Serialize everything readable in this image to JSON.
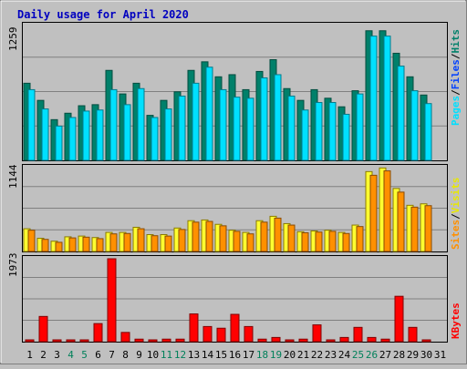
{
  "title": "Daily usage for April 2020",
  "colors": {
    "background": "#c0c0c0",
    "title": "#0000c0",
    "hits": "#00806a",
    "files": "#00e0ff",
    "visits": "#ffff30",
    "sites": "#ff9000",
    "kbytes": "#ff0000",
    "weekend": "#00805a",
    "text": "#000000"
  },
  "chart_data": [
    {
      "type": "bar",
      "panel": "hits-files",
      "ymax_label": "1259",
      "ylim": [
        0,
        1259
      ],
      "grid": true,
      "legend_placement": "right",
      "legend": [
        "Pages",
        "Files",
        "Hits"
      ],
      "categories": [
        "1",
        "2",
        "3",
        "4",
        "5",
        "6",
        "7",
        "8",
        "9",
        "10",
        "11",
        "12",
        "13",
        "14",
        "15",
        "16",
        "17",
        "18",
        "19",
        "20",
        "21",
        "22",
        "23",
        "24",
        "25",
        "26",
        "27",
        "28",
        "29",
        "30",
        "31"
      ],
      "series": [
        {
          "name": "Hits",
          "values": [
            720,
            560,
            380,
            440,
            510,
            520,
            840,
            620,
            720,
            420,
            560,
            640,
            840,
            920,
            780,
            800,
            660,
            830,
            940,
            670,
            560,
            660,
            580,
            500,
            650,
            1210,
            1210,
            1000,
            780,
            610,
            0
          ]
        },
        {
          "name": "Files",
          "values": [
            660,
            480,
            320,
            400,
            460,
            470,
            660,
            520,
            670,
            400,
            480,
            600,
            720,
            870,
            660,
            590,
            580,
            770,
            800,
            600,
            470,
            540,
            540,
            430,
            620,
            1160,
            1160,
            880,
            650,
            530,
            0
          ]
        },
        {
          "name": "Pages",
          "values": [
            0,
            0,
            0,
            0,
            0,
            0,
            0,
            0,
            0,
            0,
            0,
            0,
            0,
            0,
            0,
            0,
            0,
            0,
            0,
            0,
            0,
            0,
            0,
            0,
            0,
            0,
            0,
            0,
            0,
            0,
            0
          ]
        }
      ]
    },
    {
      "type": "bar",
      "panel": "visits-sites",
      "ymax_label": "1144",
      "ylim": [
        0,
        1144
      ],
      "grid": true,
      "legend_placement": "right",
      "legend": [
        "Sites",
        "Visits"
      ],
      "categories": [
        "1",
        "2",
        "3",
        "4",
        "5",
        "6",
        "7",
        "8",
        "9",
        "10",
        "11",
        "12",
        "13",
        "14",
        "15",
        "16",
        "17",
        "18",
        "19",
        "20",
        "21",
        "22",
        "23",
        "24",
        "25",
        "26",
        "27",
        "28",
        "29",
        "30",
        "31"
      ],
      "series": [
        {
          "name": "Visits",
          "values": [
            310,
            180,
            140,
            200,
            210,
            190,
            260,
            260,
            330,
            230,
            230,
            320,
            420,
            430,
            370,
            290,
            260,
            420,
            480,
            380,
            270,
            280,
            290,
            260,
            360,
            1090,
            1140,
            860,
            630,
            650,
            0
          ]
        },
        {
          "name": "Sites",
          "values": [
            290,
            165,
            125,
            185,
            195,
            175,
            240,
            245,
            310,
            215,
            210,
            300,
            400,
            410,
            350,
            275,
            240,
            400,
            455,
            360,
            255,
            265,
            275,
            245,
            340,
            1040,
            1100,
            810,
            605,
            625,
            0
          ]
        }
      ]
    },
    {
      "type": "bar",
      "panel": "kbytes",
      "ymax_label": "1973",
      "ylim": [
        0,
        1973
      ],
      "grid": true,
      "legend_placement": "right",
      "legend": [
        "KBytes"
      ],
      "categories": [
        "1",
        "2",
        "3",
        "4",
        "5",
        "6",
        "7",
        "8",
        "9",
        "10",
        "11",
        "12",
        "13",
        "14",
        "15",
        "16",
        "17",
        "18",
        "19",
        "20",
        "21",
        "22",
        "23",
        "24",
        "25",
        "26",
        "27",
        "28",
        "29",
        "30",
        "31"
      ],
      "series": [
        {
          "name": "KBytes",
          "values": [
            20,
            600,
            40,
            20,
            20,
            430,
            1973,
            220,
            60,
            30,
            60,
            60,
            660,
            360,
            320,
            650,
            360,
            60,
            100,
            20,
            60,
            400,
            30,
            100,
            340,
            100,
            60,
            1080,
            340,
            20,
            0
          ]
        }
      ]
    }
  ],
  "x_labels": [
    {
      "label": "1",
      "weekend": false
    },
    {
      "label": "2",
      "weekend": false
    },
    {
      "label": "3",
      "weekend": false
    },
    {
      "label": "4",
      "weekend": true
    },
    {
      "label": "5",
      "weekend": true
    },
    {
      "label": "6",
      "weekend": false
    },
    {
      "label": "7",
      "weekend": false
    },
    {
      "label": "8",
      "weekend": false
    },
    {
      "label": "9",
      "weekend": false
    },
    {
      "label": "10",
      "weekend": false
    },
    {
      "label": "11",
      "weekend": true
    },
    {
      "label": "12",
      "weekend": true
    },
    {
      "label": "13",
      "weekend": false
    },
    {
      "label": "14",
      "weekend": false
    },
    {
      "label": "15",
      "weekend": false
    },
    {
      "label": "16",
      "weekend": false
    },
    {
      "label": "17",
      "weekend": false
    },
    {
      "label": "18",
      "weekend": true
    },
    {
      "label": "19",
      "weekend": true
    },
    {
      "label": "20",
      "weekend": false
    },
    {
      "label": "21",
      "weekend": false
    },
    {
      "label": "22",
      "weekend": false
    },
    {
      "label": "23",
      "weekend": false
    },
    {
      "label": "24",
      "weekend": false
    },
    {
      "label": "25",
      "weekend": true
    },
    {
      "label": "26",
      "weekend": true
    },
    {
      "label": "27",
      "weekend": false
    },
    {
      "label": "28",
      "weekend": false
    },
    {
      "label": "29",
      "weekend": false
    },
    {
      "label": "30",
      "weekend": false
    },
    {
      "label": "31",
      "weekend": false
    }
  ],
  "legend_text": {
    "pages": "Pages",
    "files": "Files",
    "hits": "Hits",
    "sites": "Sites",
    "visits": "Visits",
    "kbytes": "KBytes",
    "sep": "/"
  }
}
